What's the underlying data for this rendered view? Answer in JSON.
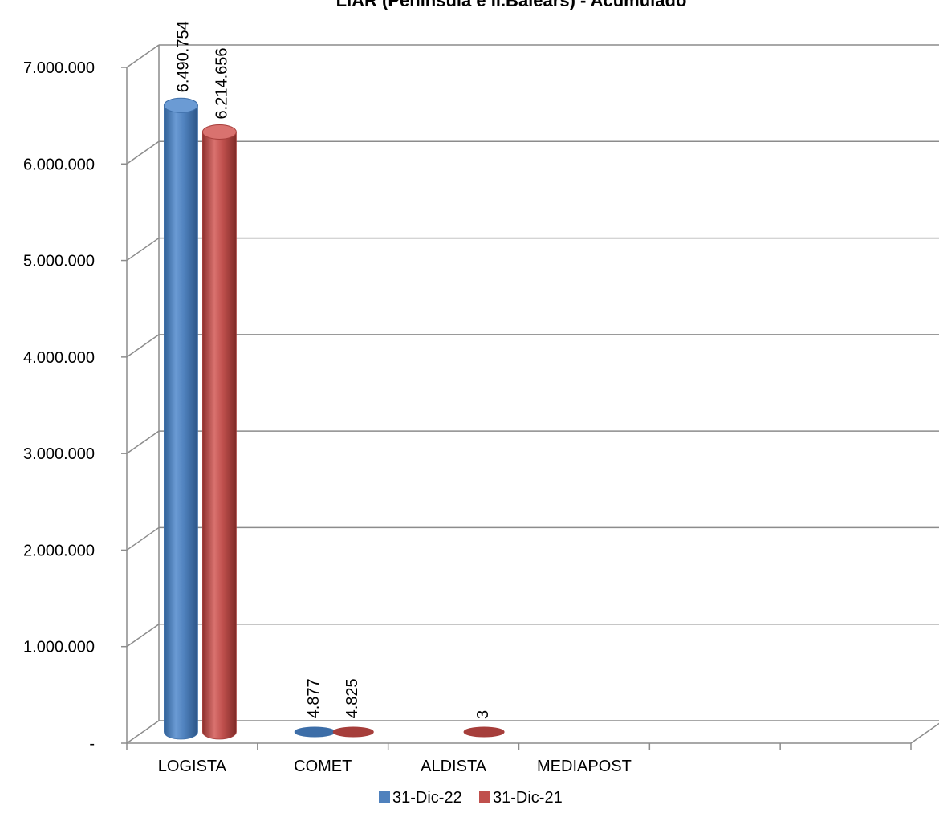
{
  "chart_data": {
    "type": "bar",
    "title": "LIAR  (Península e Il.Balears) - Acumulado",
    "xlabel": "",
    "ylabel": "",
    "categories": [
      "LOGISTA",
      "COMET",
      "ALDISTA",
      "MEDIAPOST",
      "",
      ""
    ],
    "series": [
      {
        "name": "31-Dic-22",
        "color": "#4F81BD",
        "values": [
          6490754,
          4877,
          0,
          0,
          0,
          0
        ],
        "labels": [
          "6.490.754",
          "4.877",
          "",
          "",
          "",
          ""
        ]
      },
      {
        "name": "31-Dic-21",
        "color": "#C0504D",
        "values": [
          6214656,
          4825,
          3,
          0,
          0,
          0
        ],
        "labels": [
          "6.214.656",
          "4.825",
          "3",
          "",
          "",
          ""
        ]
      }
    ],
    "ylim": [
      0,
      7000000
    ],
    "yticks": [
      0,
      1000000,
      2000000,
      3000000,
      4000000,
      5000000,
      6000000,
      7000000
    ],
    "ytick_labels": [
      "-",
      "1.000.000",
      "2.000.000",
      "3.000.000",
      "4.000.000",
      "5.000.000",
      "6.000.000",
      "7.000.000"
    ],
    "grid": true,
    "legend": "bottom",
    "style": "3d-cylinder"
  }
}
